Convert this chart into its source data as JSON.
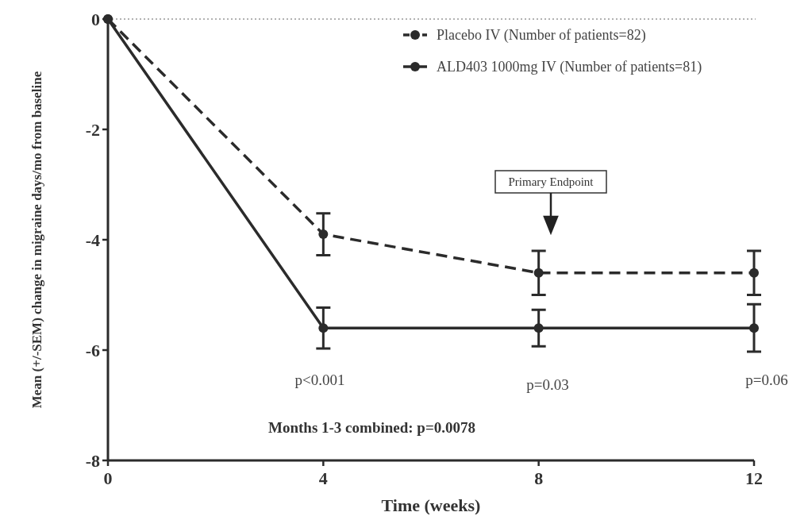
{
  "chart_data": {
    "type": "line",
    "xlabel": "Time (weeks)",
    "ylabel": "Mean (+/-SEM) change in migraine days/mo from baseline",
    "x": [
      0,
      4,
      8,
      12
    ],
    "series": [
      {
        "name": "Placebo IV (Number of patients=82)",
        "color": "#2b2b2b",
        "values": [
          0,
          -3.9,
          -4.6,
          -4.6
        ],
        "errors": [
          null,
          0.38,
          0.4,
          0.4
        ],
        "line_style": "dashed"
      },
      {
        "name": "ALD403 1000mg IV (Number of patients=81)",
        "color": "#2b2b2b",
        "values": [
          0,
          -5.6,
          -5.6,
          -5.6
        ],
        "errors": [
          null,
          0.37,
          0.33,
          0.43
        ],
        "line_style": "solid"
      }
    ],
    "xlim": [
      0,
      12
    ],
    "xticks": [
      0,
      4,
      8,
      12
    ],
    "ylim": [
      -8,
      0
    ],
    "yticks": [
      0,
      -2,
      -4,
      -6,
      -8
    ],
    "ref_lines": [
      {
        "axis": "y",
        "value": 0,
        "color": "#999999",
        "line_style": "dotted"
      }
    ],
    "annotations": [
      "p<0.001",
      "p=0.03",
      "p=0.06",
      "Primary Endpoint",
      "Months 1-3 combined: p=0.0078"
    ],
    "legend": "top right",
    "marker": "circle",
    "grid": false
  }
}
